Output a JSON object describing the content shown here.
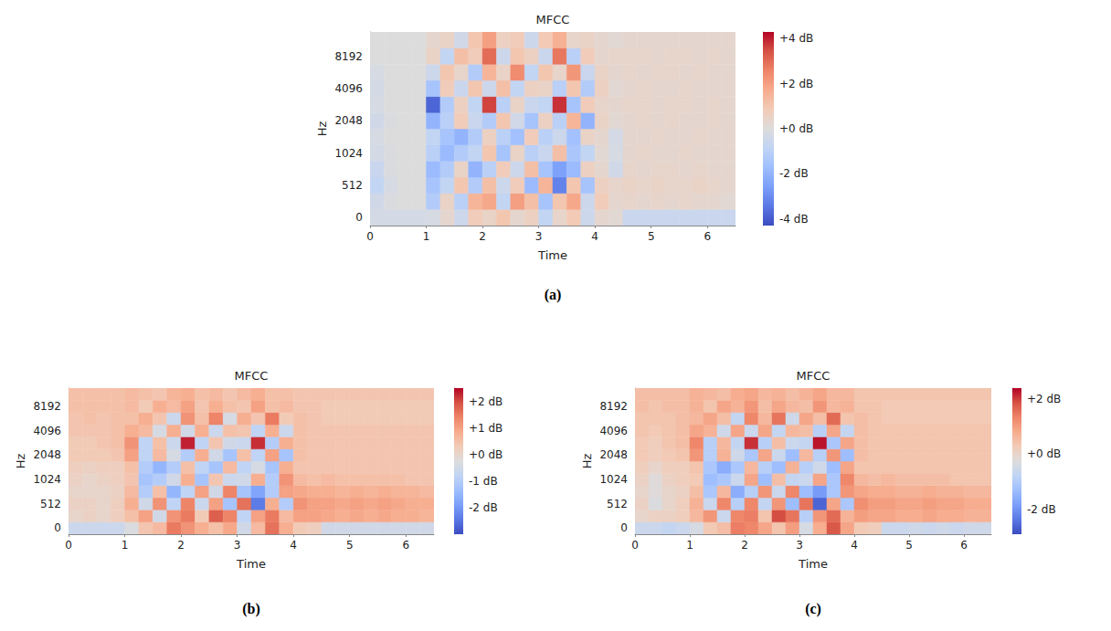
{
  "chart_data": [
    {
      "type": "heatmap",
      "title": "MFCC",
      "label": "(a)",
      "x_label": "Time",
      "y_label": "Hz",
      "xlim": [
        0,
        6.5
      ],
      "xticks": [
        0,
        1,
        2,
        3,
        4,
        5,
        6
      ],
      "grid": false,
      "x_edges": [
        0,
        0.25,
        0.5,
        0.75,
        1,
        1.25,
        1.5,
        1.75,
        2,
        2.25,
        2.5,
        2.75,
        3,
        3.25,
        3.5,
        3.75,
        4,
        4.25,
        4.5,
        4.75,
        5,
        5.25,
        5.5,
        5.75,
        6,
        6.25,
        6.5
      ],
      "y_categories": [
        "0",
        null,
        "512",
        null,
        "1024",
        null,
        "2048",
        null,
        "4096",
        null,
        "8192",
        null
      ],
      "cells": [
        [
          -0.3,
          -0.3,
          -0.3,
          -0.3,
          -0.2,
          0.3,
          -0.5,
          0.8,
          0.5,
          1.0,
          0.3,
          0.6,
          -0.8,
          0.4,
          0.9,
          -0.5,
          0.3,
          0.2,
          -0.6,
          -0.6,
          -0.6,
          -0.6,
          -0.6,
          -0.6,
          -0.6,
          -0.6
        ],
        [
          -0.4,
          -0.1,
          0,
          0,
          -1.2,
          0.5,
          -1.0,
          1.5,
          1.8,
          -0.8,
          2.0,
          1.2,
          -1.5,
          1.0,
          1.8,
          -0.5,
          0.8,
          0.3,
          0.4,
          0.3,
          0.4,
          0.3,
          0.4,
          0.3,
          0.3,
          0.2
        ],
        [
          -0.8,
          -0.2,
          0,
          0,
          -1.5,
          -0.8,
          1.0,
          -1.2,
          1.2,
          -0.5,
          0.8,
          -1.8,
          1.5,
          -3.2,
          1.0,
          -1.5,
          0.6,
          0.4,
          0.5,
          0.4,
          0.5,
          0.4,
          0.4,
          0.5,
          0.4,
          0.3
        ],
        [
          -0.6,
          -0.1,
          0,
          0,
          -1.8,
          -1.2,
          0.5,
          -2.0,
          -1.0,
          0.8,
          -0.5,
          1.2,
          -1.5,
          -2.5,
          -1.8,
          0.6,
          0.3,
          -0.4,
          0.4,
          0.3,
          0.4,
          0.4,
          0.3,
          0.4,
          0.3,
          0.3
        ],
        [
          -0.3,
          -0.1,
          0,
          0,
          -1.0,
          -1.8,
          -1.2,
          -0.8,
          1.0,
          -1.5,
          0.5,
          -1.0,
          -0.6,
          1.2,
          -1.4,
          -0.8,
          0.2,
          -0.2,
          0.3,
          0.4,
          0.3,
          0.3,
          0.4,
          0.3,
          0.3,
          0.3
        ],
        [
          -0.2,
          0,
          0,
          0,
          -0.8,
          -1.5,
          -2.0,
          -1.2,
          0.6,
          -1.0,
          -1.6,
          0.8,
          -1.0,
          -0.5,
          -1.6,
          0.5,
          0.3,
          -0.3,
          0.3,
          0.3,
          0.4,
          0.3,
          0.3,
          0.4,
          0.3,
          0.3
        ],
        [
          -0.4,
          -0.1,
          0,
          0,
          -2.0,
          -1.0,
          0.8,
          -0.6,
          -1.2,
          1.0,
          -0.4,
          -1.5,
          0.6,
          -1.0,
          1.5,
          -2.0,
          0.5,
          0.2,
          0.3,
          0.4,
          0.3,
          0.4,
          0.3,
          0.3,
          0.4,
          0.3
        ],
        [
          -0.2,
          0,
          0,
          0,
          -3.8,
          -1.2,
          0.6,
          -0.8,
          3.6,
          -1.0,
          0.5,
          -0.6,
          -0.8,
          3.8,
          -1.5,
          0.8,
          0.4,
          0.3,
          0.4,
          0.4,
          0.3,
          0.4,
          0.4,
          0.3,
          0.4,
          0.3
        ],
        [
          -0.3,
          0,
          0,
          0,
          -1.5,
          0.8,
          -0.6,
          1.0,
          -0.5,
          1.2,
          -0.8,
          0.6,
          0.5,
          -1.0,
          1.0,
          -1.2,
          0.6,
          0.2,
          0.3,
          0.4,
          0.3,
          0.3,
          0.4,
          0.3,
          0.3,
          0.3
        ],
        [
          -0.2,
          0,
          0,
          0,
          -0.5,
          1.0,
          0.4,
          -1.2,
          1.5,
          0.5,
          2.4,
          -0.8,
          1.0,
          0.4,
          2.2,
          -0.6,
          0.5,
          0.3,
          0.4,
          0.3,
          0.4,
          0.4,
          0.3,
          0.4,
          0.3,
          0.3
        ],
        [
          0,
          0,
          0,
          0,
          0.5,
          -0.8,
          1.2,
          0.8,
          3.0,
          -0.5,
          1.0,
          0.6,
          -0.6,
          2.8,
          -1.0,
          0.8,
          0.3,
          0.4,
          0.4,
          0.4,
          0.3,
          0.4,
          0.4,
          0.3,
          0.4,
          0.3
        ],
        [
          0,
          0,
          0,
          0,
          0.3,
          0.5,
          -0.4,
          1.0,
          2.0,
          0.6,
          0.8,
          -0.5,
          0.9,
          1.6,
          0.4,
          0.5,
          0.3,
          0.2,
          0.3,
          0.3,
          0.3,
          0.3,
          0.3,
          0.3,
          0.3,
          0.3
        ]
      ],
      "colorbar": {
        "range": [
          -4.3,
          4.3
        ],
        "ticks": [
          {
            "value": 4,
            "label": "+4 dB"
          },
          {
            "value": 2,
            "label": "+2 dB"
          },
          {
            "value": 0,
            "label": "+0 dB"
          },
          {
            "value": -2,
            "label": "-2 dB"
          },
          {
            "value": -4,
            "label": "-4 dB"
          }
        ]
      }
    },
    {
      "type": "heatmap",
      "title": "MFCC",
      "label": "(b)",
      "x_label": "Time",
      "y_label": "Hz",
      "xlim": [
        0,
        6.5
      ],
      "xticks": [
        0,
        1,
        2,
        3,
        4,
        5,
        6
      ],
      "grid": false,
      "x_edges": [
        0,
        0.25,
        0.5,
        0.75,
        1,
        1.25,
        1.5,
        1.75,
        2,
        2.25,
        2.5,
        2.75,
        3,
        3.25,
        3.5,
        3.75,
        4,
        4.25,
        4.5,
        4.75,
        5,
        5.25,
        5.5,
        5.75,
        6,
        6.25,
        6.5
      ],
      "y_categories": [
        "0",
        null,
        "512",
        null,
        "1024",
        null,
        "2048",
        null,
        "4096",
        null,
        "8192",
        null
      ],
      "cells": [
        [
          -0.6,
          -0.6,
          -0.6,
          -0.6,
          -0.3,
          0.4,
          0.6,
          1.5,
          1.2,
          0.8,
          0.5,
          0.9,
          -0.5,
          0.6,
          1.6,
          0.8,
          0.3,
          0.2,
          -0.5,
          -0.5,
          -0.5,
          -0.5,
          -0.5,
          -0.5,
          -0.5,
          -0.5
        ],
        [
          0,
          0.1,
          0,
          0.2,
          0.5,
          1.0,
          -0.5,
          1.2,
          1.5,
          0.3,
          1.8,
          1.4,
          -0.8,
          1.0,
          1.5,
          0.6,
          1.0,
          1.0,
          0.9,
          0.8,
          0.9,
          0.8,
          0.9,
          0.8,
          0.8,
          0.7
        ],
        [
          0.1,
          0.1,
          0,
          0.2,
          0.8,
          -0.5,
          1.2,
          -0.8,
          1.4,
          -0.6,
          1.0,
          -1.2,
          1.6,
          -2.4,
          0.8,
          -1.0,
          1.2,
          1.0,
          1.0,
          0.9,
          1.0,
          0.9,
          1.0,
          0.9,
          0.8,
          0.8
        ],
        [
          0,
          0,
          0,
          0.1,
          0.6,
          -1.0,
          0.5,
          -1.5,
          -0.8,
          1.0,
          -0.5,
          1.4,
          -1.2,
          -1.8,
          -1.0,
          1.0,
          0.9,
          0.8,
          0.8,
          0.7,
          0.8,
          0.7,
          0.8,
          0.7,
          0.7,
          0.6
        ],
        [
          0.1,
          0,
          0.1,
          0.2,
          0.4,
          -1.2,
          -1.0,
          -0.5,
          0.8,
          -1.2,
          0.4,
          -0.6,
          -0.5,
          0.8,
          -1.0,
          1.2,
          0.6,
          0.5,
          0.6,
          0.5,
          0.5,
          0.5,
          0.5,
          0.5,
          0.4,
          0.4
        ],
        [
          0.2,
          0.1,
          0.2,
          0.2,
          0.5,
          -1.0,
          -1.5,
          -1.0,
          0.5,
          -0.8,
          -1.2,
          0.6,
          -0.8,
          -0.4,
          -1.2,
          0.8,
          0.4,
          0.4,
          0.4,
          0.4,
          0.4,
          0.4,
          0.4,
          0.4,
          0.4,
          0.4
        ],
        [
          0.3,
          0.3,
          0.3,
          0.4,
          1.0,
          -0.8,
          0.6,
          -0.4,
          -1.0,
          0.8,
          -0.5,
          -1.2,
          0.5,
          -0.8,
          1.0,
          -1.2,
          0.5,
          0.4,
          0.4,
          0.4,
          0.4,
          0.4,
          0.4,
          0.4,
          0.4,
          0.4
        ],
        [
          0.3,
          0.3,
          0.4,
          0.5,
          1.2,
          -0.8,
          0.5,
          -0.6,
          2.3,
          -0.8,
          0.4,
          -0.5,
          -0.6,
          2.2,
          -1.0,
          0.8,
          0.5,
          0.4,
          0.4,
          0.4,
          0.4,
          0.4,
          0.4,
          0.4,
          0.4,
          0.4
        ],
        [
          0.4,
          0.4,
          0.4,
          0.5,
          0.8,
          0.6,
          -0.4,
          0.8,
          -0.5,
          0.8,
          -0.6,
          0.5,
          0.4,
          -0.8,
          0.8,
          -0.6,
          0.5,
          0.4,
          0.4,
          0.4,
          0.4,
          0.4,
          0.4,
          0.4,
          0.4,
          0.4
        ],
        [
          0.4,
          0.5,
          0.4,
          0.5,
          0.5,
          0.8,
          0.4,
          -0.6,
          1.2,
          0.5,
          1.4,
          -0.4,
          0.8,
          0.4,
          1.5,
          0.3,
          0.5,
          0.4,
          0.3,
          0.3,
          0.3,
          0.3,
          0.3,
          0.3,
          0.3,
          0.3
        ],
        [
          0.5,
          0.5,
          0.5,
          0.5,
          0.6,
          0.3,
          0.8,
          0.6,
          1.0,
          0.4,
          0.8,
          0.5,
          0.4,
          1.0,
          0.5,
          0.6,
          0.4,
          0.4,
          0.3,
          0.3,
          0.3,
          0.3,
          0.3,
          0.3,
          0.3,
          0.3
        ],
        [
          0.5,
          0.5,
          0.5,
          0.5,
          0.6,
          0.5,
          0.4,
          0.7,
          0.8,
          0.5,
          0.6,
          0.4,
          0.6,
          0.8,
          0.5,
          0.5,
          0.4,
          0.4,
          0.4,
          0.4,
          0.4,
          0.4,
          0.4,
          0.4,
          0.4,
          0.4
        ]
      ],
      "colorbar": {
        "range": [
          -3.0,
          2.5
        ],
        "ticks": [
          {
            "value": 2,
            "label": "+2 dB"
          },
          {
            "value": 1,
            "label": "+1 dB"
          },
          {
            "value": 0,
            "label": "+0 dB"
          },
          {
            "value": -1,
            "label": "-1 dB"
          },
          {
            "value": -2,
            "label": "-2 dB"
          }
        ]
      }
    },
    {
      "type": "heatmap",
      "title": "MFCC",
      "label": "(c)",
      "x_label": "Time",
      "y_label": "Hz",
      "xlim": [
        0,
        6.5
      ],
      "xticks": [
        0,
        1,
        2,
        3,
        4,
        5,
        6
      ],
      "grid": false,
      "x_edges": [
        0,
        0.25,
        0.5,
        0.75,
        1,
        1.25,
        1.5,
        1.75,
        2,
        2.25,
        2.5,
        2.75,
        3,
        3.25,
        3.5,
        3.75,
        4,
        4.25,
        4.5,
        4.75,
        5,
        5.25,
        5.5,
        5.75,
        6,
        6.25,
        6.5
      ],
      "y_categories": [
        "0",
        null,
        "512",
        null,
        "1024",
        null,
        "2048",
        null,
        "4096",
        null,
        "8192",
        null
      ],
      "cells": [
        [
          -0.6,
          -0.6,
          -0.7,
          -0.6,
          -0.4,
          0.3,
          0.5,
          1.4,
          1.3,
          0.9,
          0.4,
          1.0,
          -0.4,
          0.8,
          1.8,
          0.9,
          0.3,
          0.2,
          -0.6,
          -0.6,
          -0.5,
          -0.6,
          -0.5,
          -0.6,
          -0.5,
          -0.5
        ],
        [
          0,
          0.1,
          0.1,
          0.2,
          0.6,
          1.1,
          -0.6,
          1.3,
          1.4,
          0.4,
          1.9,
          1.5,
          -0.9,
          1.1,
          1.6,
          0.7,
          1.0,
          0.9,
          0.9,
          0.8,
          0.8,
          0.9,
          0.8,
          0.8,
          0.7,
          0.7
        ],
        [
          0.1,
          -0.3,
          0,
          0.2,
          0.7,
          -0.6,
          1.3,
          -0.9,
          1.3,
          -0.7,
          1.1,
          -1.3,
          1.5,
          -2.6,
          0.9,
          -1.1,
          1.2,
          1.0,
          1.0,
          0.9,
          0.9,
          1.0,
          0.9,
          0.9,
          0.8,
          0.8
        ],
        [
          0,
          -0.2,
          0,
          0.1,
          0.5,
          -1.1,
          0.6,
          -1.6,
          -0.9,
          1.1,
          -0.6,
          1.3,
          -1.3,
          -1.9,
          -1.1,
          1.1,
          0.9,
          0.8,
          0.8,
          0.7,
          0.7,
          0.8,
          0.7,
          0.7,
          0.6,
          0.6
        ],
        [
          0.1,
          -0.2,
          0.1,
          0.2,
          0.3,
          -1.3,
          -1.1,
          -0.6,
          0.9,
          -1.3,
          0.5,
          -0.7,
          -0.6,
          0.9,
          -1.1,
          1.3,
          0.6,
          0.5,
          0.6,
          0.5,
          0.5,
          0.5,
          0.5,
          0.4,
          0.4,
          0.4
        ],
        [
          0.2,
          0,
          0.2,
          0.2,
          0.4,
          -1.1,
          -1.6,
          -1.1,
          0.6,
          -0.9,
          -1.3,
          0.7,
          -0.9,
          -0.5,
          -1.3,
          0.9,
          0.4,
          0.4,
          0.4,
          0.4,
          0.4,
          0.4,
          0.4,
          0.4,
          0.4,
          0.4
        ],
        [
          0.3,
          0.2,
          0.3,
          0.4,
          1.1,
          -0.9,
          0.7,
          -0.5,
          -1.1,
          0.9,
          -0.6,
          -1.3,
          0.6,
          -0.9,
          1.1,
          -1.3,
          0.5,
          0.4,
          0.4,
          0.4,
          0.4,
          0.4,
          0.4,
          0.4,
          0.4,
          0.4
        ],
        [
          0.3,
          0.2,
          0.4,
          0.5,
          1.3,
          -0.9,
          0.6,
          -0.7,
          2.1,
          -0.9,
          0.5,
          -0.6,
          -0.7,
          2.3,
          -1.1,
          0.9,
          0.5,
          0.4,
          0.4,
          0.4,
          0.4,
          0.4,
          0.4,
          0.4,
          0.4,
          0.4
        ],
        [
          0.4,
          0.3,
          0.4,
          0.5,
          0.9,
          0.7,
          -0.5,
          0.9,
          -0.6,
          0.9,
          -0.7,
          0.6,
          0.5,
          -0.9,
          0.9,
          -0.7,
          0.5,
          0.4,
          0.4,
          0.4,
          0.4,
          0.4,
          0.4,
          0.4,
          0.4,
          0.4
        ],
        [
          0.4,
          0.4,
          0.4,
          0.5,
          0.6,
          0.9,
          0.5,
          -0.7,
          1.3,
          0.6,
          1.5,
          -0.5,
          0.9,
          0.5,
          1.6,
          0.4,
          0.5,
          0.4,
          0.3,
          0.3,
          0.3,
          0.3,
          0.3,
          0.3,
          0.3,
          0.3
        ],
        [
          0.5,
          0.4,
          0.5,
          0.5,
          0.7,
          0.4,
          0.9,
          0.7,
          1.1,
          0.5,
          0.9,
          0.6,
          0.5,
          1.1,
          0.6,
          0.7,
          0.4,
          0.4,
          0.3,
          0.3,
          0.3,
          0.3,
          0.3,
          0.3,
          0.3,
          0.3
        ],
        [
          0.5,
          0.5,
          0.5,
          0.5,
          0.7,
          0.6,
          0.5,
          0.8,
          0.9,
          0.6,
          0.7,
          0.5,
          0.7,
          0.9,
          0.6,
          0.6,
          0.4,
          0.4,
          0.4,
          0.4,
          0.4,
          0.4,
          0.4,
          0.4,
          0.4,
          0.4
        ]
      ],
      "colorbar": {
        "range": [
          -2.9,
          2.4
        ],
        "ticks": [
          {
            "value": 2,
            "label": "+2 dB"
          },
          {
            "value": 0,
            "label": "+0 dB"
          },
          {
            "value": -2,
            "label": "-2 dB"
          }
        ]
      }
    }
  ]
}
